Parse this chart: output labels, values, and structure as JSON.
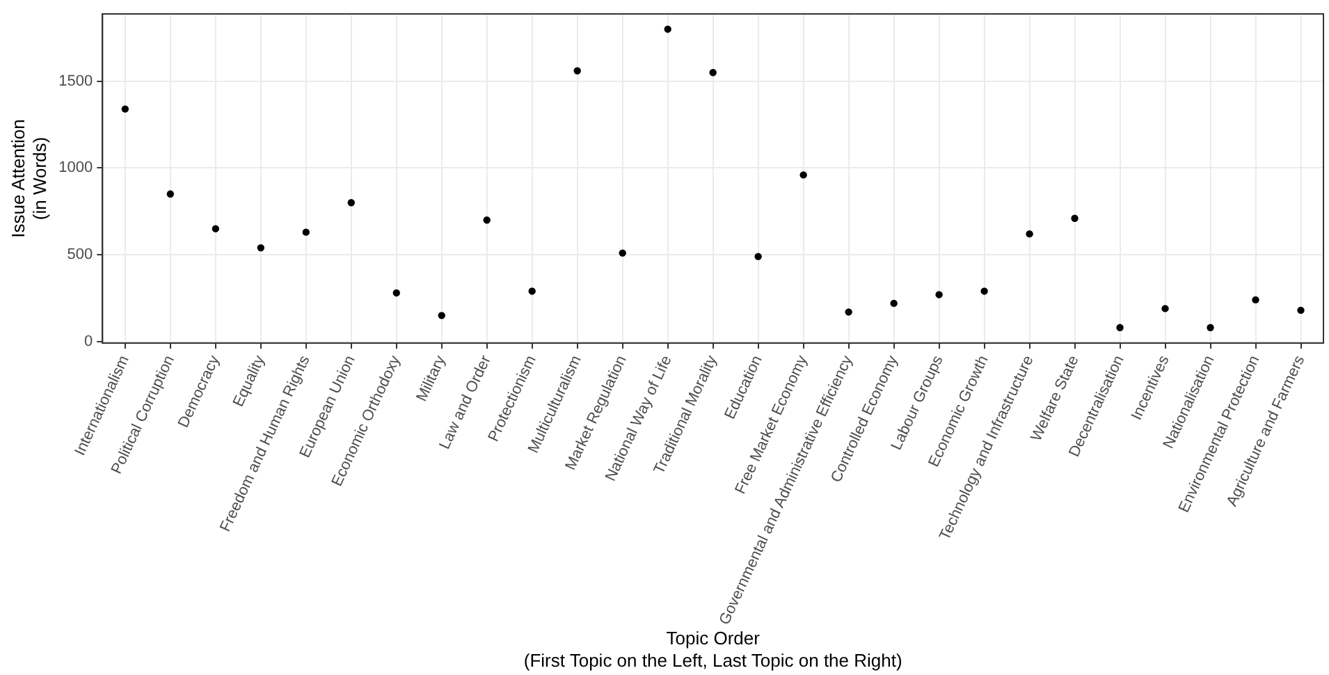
{
  "chart_data": {
    "type": "scatter",
    "xlabel": "Topic Order\n(First Topic on the Left, Last Topic on the Right)",
    "ylabel": "Issue Attention\n(in Words)",
    "categories": [
      "Internationalism",
      "Political Corruption",
      "Democracy",
      "Equality",
      "Freedom and Human Rights",
      "European Union",
      "Economic Orthodoxy",
      "Military",
      "Law and Order",
      "Protectionism",
      "Multiculturalism",
      "Market Regulation",
      "National Way of Life",
      "Traditional Morality",
      "Education",
      "Free Market Economy",
      "Governmental and Administrative Efficiency",
      "Controlled Economy",
      "Labour Groups",
      "Economic Growth",
      "Technology and Infrastructure",
      "Welfare State",
      "Decentralisation",
      "Incentives",
      "Nationalisation",
      "Environmental Protection",
      "Agriculture and Farmers"
    ],
    "series": [
      {
        "color": "#000000",
        "values": [
          1340,
          850,
          650,
          540,
          630,
          800,
          280,
          150,
          700,
          290,
          1560,
          510,
          1800,
          1550,
          490,
          960,
          170,
          220,
          270,
          290,
          620,
          710,
          80,
          190,
          80,
          240,
          180
        ]
      }
    ],
    "ylim": [
      -9,
      1888
    ],
    "yticks": [
      0,
      500,
      1000,
      1500
    ],
    "grid": true,
    "legend": false,
    "marker": "circle"
  }
}
